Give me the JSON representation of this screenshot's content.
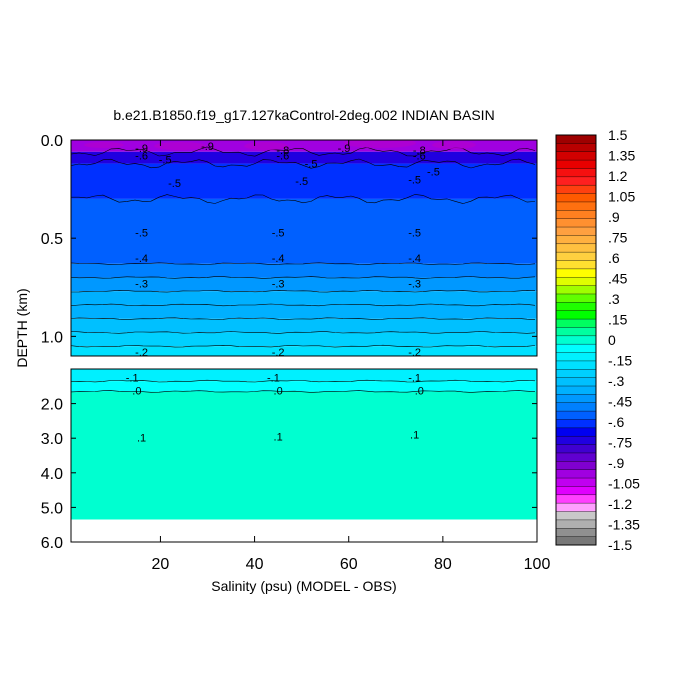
{
  "chart_data": {
    "type": "heatmap",
    "title": "b.e21.B1850.f19_g17.127kaControl-2deg.002 INDIAN BASIN",
    "xlabel": "Salinity (psu) (MODEL - OBS)",
    "ylabel": "DEPTH (km)",
    "x_range": [
      1,
      100
    ],
    "x_ticks": [
      "20",
      "40",
      "60",
      "80",
      "100"
    ],
    "upper_panel": {
      "depth_range_km": [
        0.0,
        1.1
      ],
      "y_ticks": [
        "0.0",
        "0.5",
        "1.0"
      ],
      "bands": [
        {
          "top": 0.0,
          "bottom": 0.06,
          "value": -0.95
        },
        {
          "top": 0.06,
          "bottom": 0.12,
          "value": -0.7
        },
        {
          "top": 0.12,
          "bottom": 0.3,
          "value": -0.55
        },
        {
          "top": 0.3,
          "bottom": 0.63,
          "value": -0.5
        },
        {
          "top": 0.63,
          "bottom": 0.7,
          "value": -0.45
        },
        {
          "top": 0.7,
          "bottom": 0.77,
          "value": -0.4
        },
        {
          "top": 0.77,
          "bottom": 0.84,
          "value": -0.35
        },
        {
          "top": 0.84,
          "bottom": 0.91,
          "value": -0.3
        },
        {
          "top": 0.91,
          "bottom": 0.98,
          "value": -0.25
        },
        {
          "top": 0.98,
          "bottom": 1.05,
          "value": -0.2
        },
        {
          "top": 1.05,
          "bottom": 1.1,
          "value": -0.15
        }
      ],
      "contour_labels": [
        {
          "text": "-.9",
          "x": 16,
          "depth": 0.04
        },
        {
          "text": "-.9",
          "x": 30,
          "depth": 0.03
        },
        {
          "text": "-.8",
          "x": 46,
          "depth": 0.05
        },
        {
          "text": "-.9",
          "x": 59,
          "depth": 0.04
        },
        {
          "text": "-.8",
          "x": 75,
          "depth": 0.05
        },
        {
          "text": "-.6",
          "x": 16,
          "depth": 0.08
        },
        {
          "text": "-.6",
          "x": 46,
          "depth": 0.08
        },
        {
          "text": "-.6",
          "x": 75,
          "depth": 0.08
        },
        {
          "text": "-.5",
          "x": 21,
          "depth": 0.1
        },
        {
          "text": "-.5",
          "x": 52,
          "depth": 0.12
        },
        {
          "text": "-.5",
          "x": 78,
          "depth": 0.16
        },
        {
          "text": "-.5",
          "x": 23,
          "depth": 0.22
        },
        {
          "text": "-.5",
          "x": 50,
          "depth": 0.21
        },
        {
          "text": "-.5",
          "x": 74,
          "depth": 0.2
        },
        {
          "text": "-.5",
          "x": 16,
          "depth": 0.47
        },
        {
          "text": "-.5",
          "x": 45,
          "depth": 0.47
        },
        {
          "text": "-.5",
          "x": 74,
          "depth": 0.47
        },
        {
          "text": "-.4",
          "x": 16,
          "depth": 0.6
        },
        {
          "text": "-.4",
          "x": 45,
          "depth": 0.6
        },
        {
          "text": "-.4",
          "x": 74,
          "depth": 0.6
        },
        {
          "text": "-.3",
          "x": 16,
          "depth": 0.73
        },
        {
          "text": "-.3",
          "x": 45,
          "depth": 0.73
        },
        {
          "text": "-.3",
          "x": 74,
          "depth": 0.73
        },
        {
          "text": "-.2",
          "x": 16,
          "depth": 1.08
        },
        {
          "text": "-.2",
          "x": 45,
          "depth": 1.08
        },
        {
          "text": "-.2",
          "x": 74,
          "depth": 1.08
        }
      ]
    },
    "lower_panel": {
      "depth_range_km": [
        1.0,
        6.0
      ],
      "y_ticks": [
        "2.0",
        "3.0",
        "4.0",
        "5.0",
        "6.0"
      ],
      "data_bottom_km": 5.35,
      "bands": [
        {
          "top": 1.0,
          "bottom": 1.35,
          "value": -0.1
        },
        {
          "top": 1.35,
          "bottom": 1.65,
          "value": -0.05
        },
        {
          "top": 1.65,
          "bottom": 5.35,
          "value": 0.05
        }
      ],
      "contour_labels": [
        {
          "text": "-.1",
          "x": 14,
          "depth": 1.25
        },
        {
          "text": "-.1",
          "x": 44,
          "depth": 1.25
        },
        {
          "text": "-.1",
          "x": 74,
          "depth": 1.25
        },
        {
          "text": ".0",
          "x": 15,
          "depth": 1.62
        },
        {
          "text": ".0",
          "x": 45,
          "depth": 1.62
        },
        {
          "text": ".0",
          "x": 75,
          "depth": 1.62
        },
        {
          "text": ".1",
          "x": 16,
          "depth": 2.98
        },
        {
          "text": ".1",
          "x": 45,
          "depth": 2.95
        },
        {
          "text": ".1",
          "x": 74,
          "depth": 2.9
        }
      ]
    },
    "colorbar": {
      "labels": [
        "1.5",
        "1.35",
        "1.2",
        "1.05",
        ".9",
        ".75",
        ".6",
        ".45",
        ".3",
        ".15",
        "0",
        "-.15",
        "-.3",
        "-.45",
        "-.6",
        "-.75",
        "-.9",
        "-1.05",
        "-1.2",
        "-1.35",
        "-1.5"
      ],
      "colors": [
        "#9e0000",
        "#b80000",
        "#d20000",
        "#e80000",
        "#f51010",
        "#ff2020",
        "#ff4010",
        "#ff5a00",
        "#ff7010",
        "#ff8020",
        "#ff9030",
        "#ffa040",
        "#ffb040",
        "#ffc040",
        "#ffd040",
        "#ffe030",
        "#ffff00",
        "#dfff00",
        "#9fff00",
        "#60ff00",
        "#20ff00",
        "#00ff00",
        "#00ff60",
        "#00ffa0",
        "#00ffd0",
        "#00ffff",
        "#00f0ff",
        "#00e0ff",
        "#00d0ff",
        "#00c0ff",
        "#00b0ff",
        "#0098ff",
        "#0080ff",
        "#0060ff",
        "#0030ff",
        "#0000f0",
        "#2000e0",
        "#4000d0",
        "#6000d0",
        "#8000d0",
        "#a000e0",
        "#c000f0",
        "#e000ff",
        "#ff40ff",
        "#ffa0ff",
        "#c8c8c8",
        "#b0b0b0",
        "#909090",
        "#787878"
      ]
    }
  }
}
